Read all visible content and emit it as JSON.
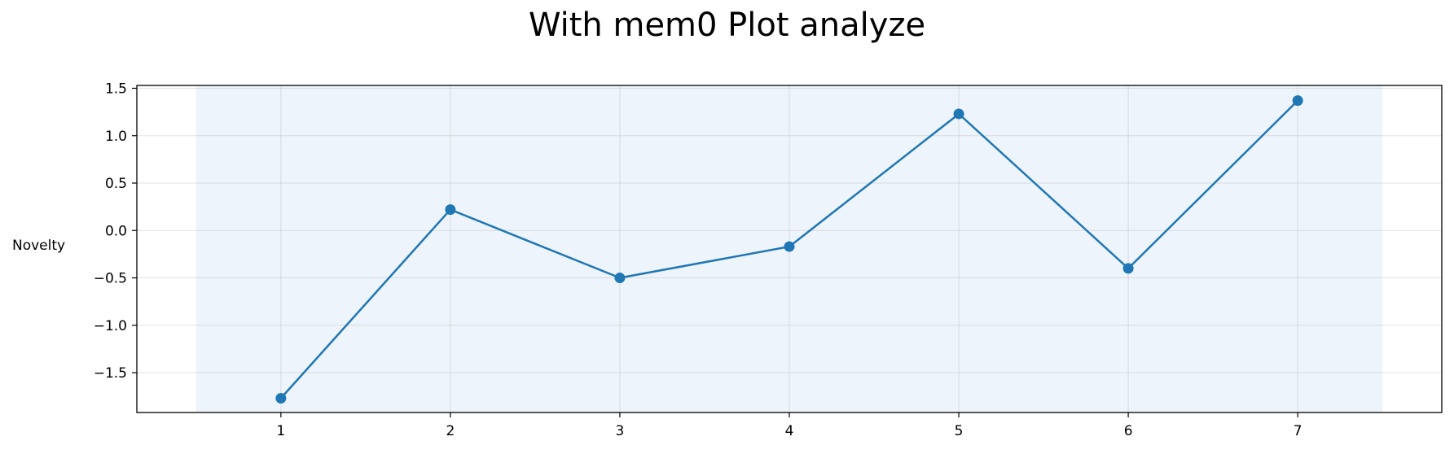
{
  "chart_data": {
    "type": "line",
    "title": "With mem0 Plot analyze",
    "xlabel": "",
    "ylabel": "Novelty",
    "x": [
      1,
      2,
      3,
      4,
      5,
      6,
      7
    ],
    "series": [
      {
        "values": [
          -1.77,
          0.22,
          -0.5,
          -0.17,
          1.23,
          -0.4,
          1.37
        ],
        "color": "#1f77b4"
      }
    ],
    "xlim": [
      0.15,
      7.85
    ],
    "ylim": [
      -1.92,
      1.53
    ],
    "xticks": [
      "1",
      "2",
      "3",
      "4",
      "5",
      "6",
      "7"
    ],
    "yticks": [
      "1.5",
      "1.0",
      "0.5",
      "0.0",
      "−0.5",
      "−1.0",
      "−1.5"
    ],
    "shaded_x_range": [
      0.5,
      7.5
    ],
    "shade_color": "#eef4fb",
    "grid": true,
    "legend": "none"
  }
}
